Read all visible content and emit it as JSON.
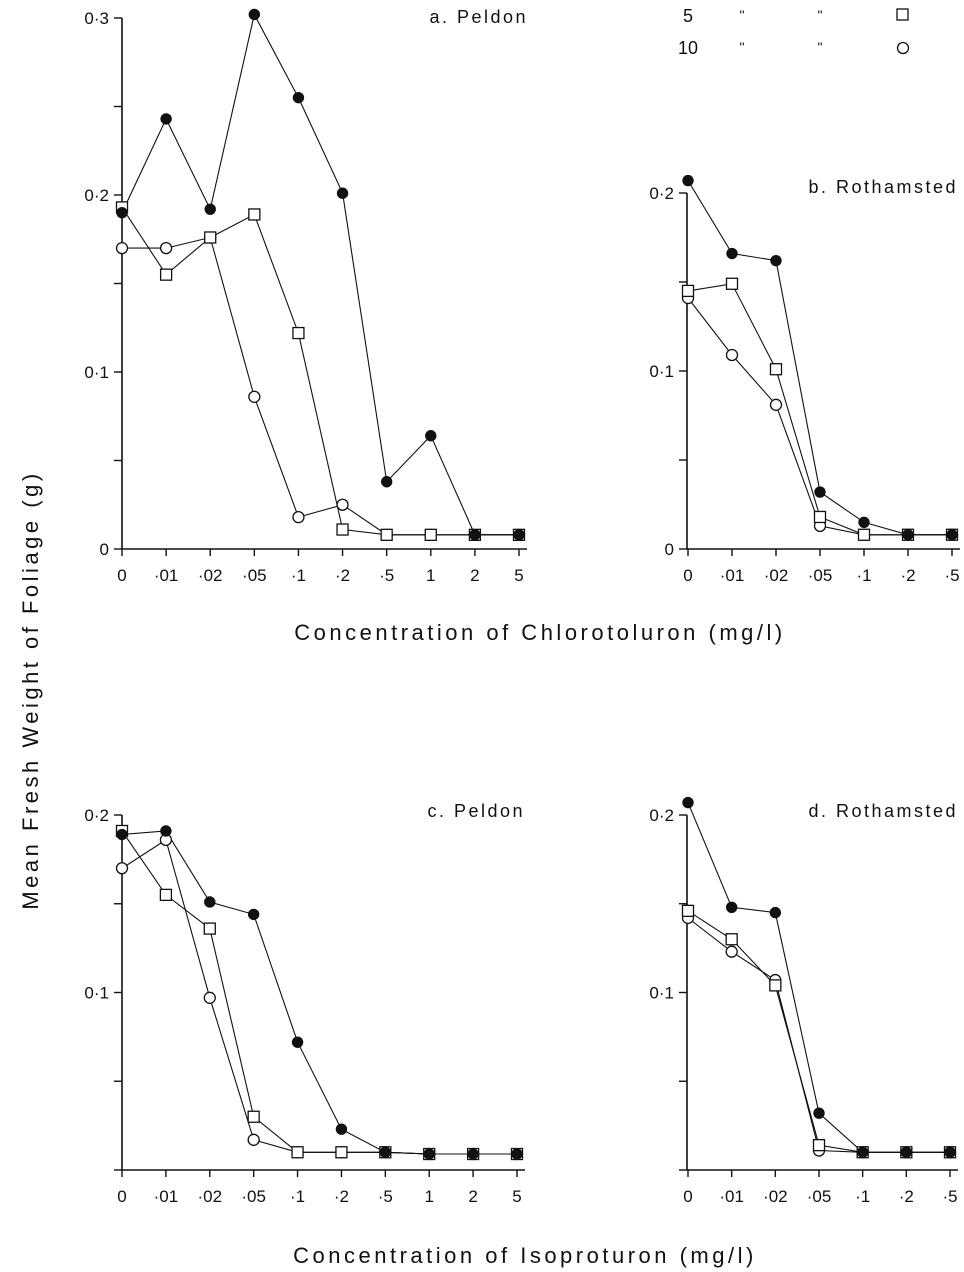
{
  "ylabel": "Mean Fresh Weight of Foliage (g)",
  "legend": [
    {
      "label": "5",
      "ditto1": "\"",
      "ditto2": "\"",
      "marker": "open-square"
    },
    {
      "label": "10",
      "ditto1": "\"",
      "ditto2": "\"",
      "marker": "open-circle"
    }
  ],
  "chart_data": [
    {
      "type": "line",
      "title": "a. Peldon",
      "xlabel": "Concentration of Chlorotoluron (mg/l)",
      "ylabel": "Mean Fresh Weight of Foliage (g)",
      "categories": [
        "0",
        "·01",
        "·02",
        "·05",
        "·1",
        "·2",
        "·5",
        "1",
        "2",
        "5"
      ],
      "ylim": [
        0,
        0.3
      ],
      "yticks": [
        0,
        0.05,
        0.1,
        0.15,
        0.2,
        0.25,
        0.3
      ],
      "ytick_labels": [
        "0",
        "",
        "0·1",
        "",
        "0·2",
        "",
        "0·3"
      ],
      "series": [
        {
          "marker": "filled-circle",
          "values": [
            0.19,
            0.243,
            0.192,
            0.302,
            0.255,
            0.201,
            0.038,
            0.064,
            0.008,
            0.008
          ]
        },
        {
          "marker": "open-square",
          "values": [
            0.193,
            0.155,
            0.176,
            0.189,
            0.122,
            0.011,
            0.008,
            0.008,
            0.008,
            0.008
          ]
        },
        {
          "marker": "open-circle",
          "values": [
            0.17,
            0.17,
            0.176,
            0.086,
            0.018,
            0.025,
            0.008,
            0.008,
            0.008,
            0.008
          ]
        }
      ]
    },
    {
      "type": "line",
      "title": "b. Rothamsted",
      "xlabel": "Concentration of Chlorotoluron (mg/l)",
      "ylabel": "Mean Fresh Weight of Foliage (g)",
      "categories": [
        "0",
        "·01",
        "·02",
        "·05",
        "·1",
        "·2",
        "·5"
      ],
      "ylim": [
        0,
        0.2
      ],
      "yticks": [
        0,
        0.05,
        0.1,
        0.15,
        0.2
      ],
      "ytick_labels": [
        "0",
        "",
        "0·1",
        "",
        "0·2"
      ],
      "series": [
        {
          "marker": "filled-circle",
          "values": [
            0.207,
            0.166,
            0.162,
            0.032,
            0.015,
            0.008,
            0.008
          ]
        },
        {
          "marker": "open-square",
          "values": [
            0.145,
            0.149,
            0.101,
            0.018,
            0.008,
            0.008,
            0.008
          ]
        },
        {
          "marker": "open-circle",
          "values": [
            0.141,
            0.109,
            0.081,
            0.013,
            0.008,
            0.008,
            0.008
          ]
        }
      ]
    },
    {
      "type": "line",
      "title": "c. Peldon",
      "xlabel": "Concentration of Isoproturon (mg/l)",
      "ylabel": "Mean Fresh Weight of Foliage (g)",
      "categories": [
        "0",
        "·01",
        "·02",
        "·05",
        "·1",
        "·2",
        "·5",
        "1",
        "2",
        "5"
      ],
      "ylim": [
        0,
        0.2
      ],
      "yticks": [
        0,
        0.05,
        0.1,
        0.15,
        0.2
      ],
      "ytick_labels": [
        "",
        "",
        "0·1",
        "",
        "0·2"
      ],
      "series": [
        {
          "marker": "filled-circle",
          "values": [
            0.189,
            0.191,
            0.151,
            0.144,
            0.072,
            0.023,
            0.01,
            0.009,
            0.009,
            0.009
          ]
        },
        {
          "marker": "open-square",
          "values": [
            0.191,
            0.155,
            0.136,
            0.03,
            0.01,
            0.01,
            0.01,
            0.009,
            0.009,
            0.009
          ]
        },
        {
          "marker": "open-circle",
          "values": [
            0.17,
            0.186,
            0.097,
            0.017,
            0.01,
            0.01,
            0.01,
            0.009,
            0.009,
            0.009
          ]
        }
      ]
    },
    {
      "type": "line",
      "title": "d. Rothamsted",
      "xlabel": "Concentration of Isoproturon (mg/l)",
      "ylabel": "Mean Fresh Weight of Foliage (g)",
      "categories": [
        "0",
        "·01",
        "·02",
        "·05",
        "·1",
        "·2",
        "·5"
      ],
      "ylim": [
        0,
        0.2
      ],
      "yticks": [
        0,
        0.05,
        0.1,
        0.15,
        0.2
      ],
      "ytick_labels": [
        "",
        "",
        "0·1",
        "",
        "0·2"
      ],
      "series": [
        {
          "marker": "filled-circle",
          "values": [
            0.207,
            0.148,
            0.145,
            0.032,
            0.01,
            0.01,
            0.01
          ]
        },
        {
          "marker": "open-square",
          "values": [
            0.146,
            0.13,
            0.104,
            0.014,
            0.01,
            0.01,
            0.01
          ]
        },
        {
          "marker": "open-circle",
          "values": [
            0.142,
            0.123,
            0.107,
            0.011,
            0.01,
            0.01,
            0.01
          ]
        }
      ]
    }
  ]
}
